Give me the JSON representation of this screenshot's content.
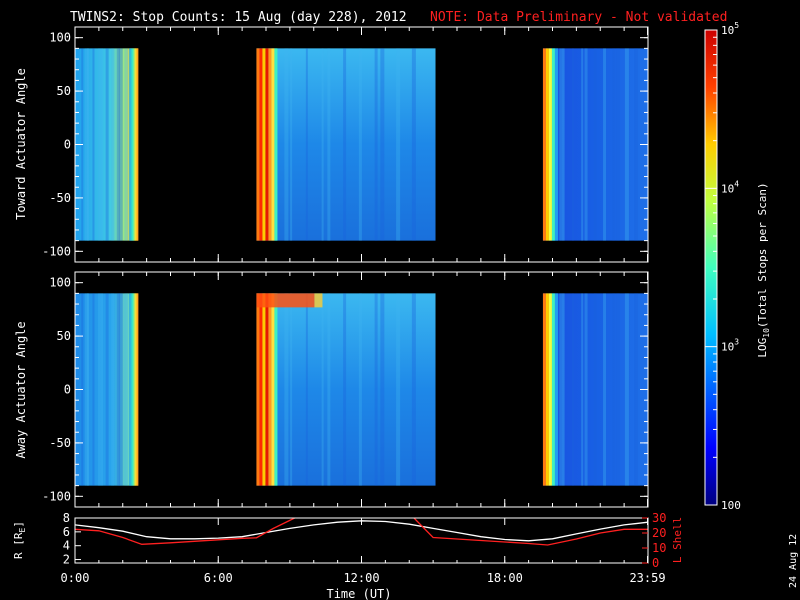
{
  "title": {
    "main": "TWINS2: Stop Counts: 15 Aug (day 228), 2012",
    "note": "NOTE: Data Preliminary - Not validated",
    "note_color": "#ff2020"
  },
  "side_date": "24 Aug 12",
  "chart_data": [
    {
      "type": "heatmap",
      "name": "toward-panel",
      "ylabel": "Toward Actuator Angle",
      "ylim": [
        -110,
        110
      ],
      "yticks": [
        100,
        50,
        0,
        -50,
        -100
      ],
      "x_unit": "hours UT",
      "data_y_range": [
        -90,
        90
      ],
      "data_blocks": [
        {
          "x_start": 0.0,
          "x_end": 2.65
        },
        {
          "x_start": 7.6,
          "x_end": 15.1
        },
        {
          "x_start": 19.6,
          "x_end": 24.0
        }
      ]
    },
    {
      "type": "heatmap",
      "name": "away-panel",
      "ylabel": "Away Actuator Angle",
      "ylim": [
        -110,
        110
      ],
      "yticks": [
        100,
        50,
        0,
        -50,
        -100
      ],
      "x_unit": "hours UT",
      "data_y_range": [
        -90,
        90
      ],
      "data_blocks": [
        {
          "x_start": 0.0,
          "x_end": 2.65
        },
        {
          "x_start": 7.6,
          "x_end": 15.1
        },
        {
          "x_start": 19.6,
          "x_end": 24.0
        }
      ]
    },
    {
      "type": "line",
      "name": "orbit-panel",
      "xlabel": "Time (UT)",
      "xticks": [
        "0:00",
        "6:00",
        "12:00",
        "18:00",
        "23:59"
      ],
      "x_tick_hours": [
        0,
        6,
        12,
        18,
        23.98
      ],
      "xlim": [
        0,
        24
      ],
      "left_axis": {
        "label": "R [R",
        "label_sub": "E",
        "label_close": "]",
        "ylim": [
          1.5,
          8
        ],
        "ticks": [
          8,
          6,
          4,
          2
        ]
      },
      "right_axis": {
        "label": "L Shell",
        "ylim": [
          0,
          30
        ],
        "ticks": [
          30,
          20,
          10,
          0
        ],
        "color": "#ff2020"
      },
      "series": [
        {
          "axis": "left",
          "color": "#ffffff",
          "x": [
            0,
            1,
            2,
            3,
            4,
            5,
            6,
            7,
            8,
            9,
            10,
            11,
            12,
            13,
            14,
            15,
            16,
            17,
            18,
            19,
            20,
            21,
            22,
            23,
            24
          ],
          "y": [
            7.0,
            6.6,
            6.1,
            5.3,
            5.0,
            5.0,
            5.1,
            5.3,
            5.9,
            6.5,
            7.0,
            7.4,
            7.6,
            7.5,
            7.1,
            6.5,
            5.9,
            5.3,
            4.9,
            4.7,
            5.0,
            5.7,
            6.4,
            7.0,
            7.4
          ]
        },
        {
          "axis": "right",
          "color": "#ff2020",
          "x": [
            0,
            1,
            2,
            2.8,
            4,
            5,
            6,
            7,
            7.6,
            8.3,
            9.2,
            9.6,
            13.2,
            14.2,
            15.0,
            16,
            17,
            18,
            19,
            19.8,
            21,
            22,
            23,
            24
          ],
          "y": [
            22.5,
            21.5,
            17,
            12.5,
            13.5,
            14.5,
            15.5,
            16.5,
            16.8,
            23,
            30,
            33,
            33,
            30,
            17,
            16,
            15,
            14,
            13,
            12,
            16,
            20,
            22.5,
            22.5
          ]
        }
      ]
    },
    {
      "type": "heatmap",
      "name": "colorbar",
      "label": "LOG",
      "label_sub": "10",
      "label_rest": "(Total Stops per Scan)",
      "scale": "log",
      "range": [
        100,
        100000
      ],
      "tick_values": [
        100000,
        10000,
        1000,
        100
      ],
      "tick_labels": [
        {
          "base": "10",
          "exp": "5"
        },
        {
          "base": "10",
          "exp": "4"
        },
        {
          "base": "10",
          "exp": "3"
        },
        {
          "base": "100",
          "exp": ""
        }
      ]
    }
  ]
}
